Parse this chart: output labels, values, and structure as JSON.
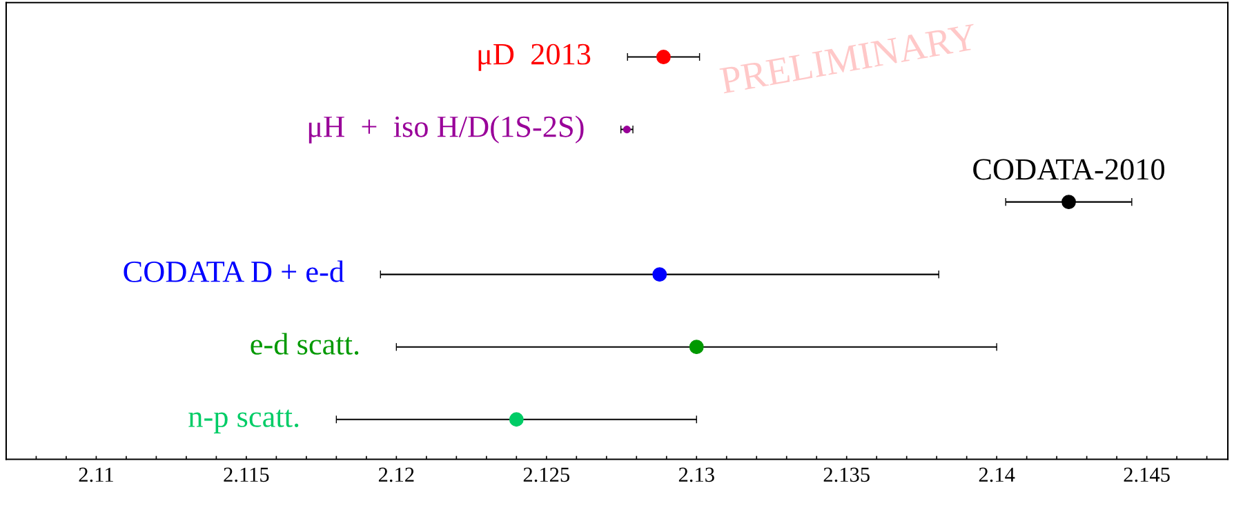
{
  "chart_data": {
    "type": "scatter",
    "orientation": "horizontal",
    "categories": [
      "μD  2013",
      "μH  +  iso H/D(1S-2S)",
      "CODATA-2010",
      "CODATA D + e-d",
      "e-d scatt.",
      "n-p scatt."
    ],
    "values": [
      2.1289,
      2.12768,
      2.1424,
      2.12877,
      2.13,
      2.124
    ],
    "errors": [
      0.0012,
      0.0002,
      0.0021,
      0.0093,
      0.01,
      0.006
    ],
    "sizes": [
      1,
      0.25,
      1,
      1,
      1,
      1
    ],
    "colors": [
      "#ff0000",
      "#990099",
      "#000000",
      "#0000ff",
      "#009900",
      "#00cc66"
    ],
    "marker": "circle",
    "tick_labels": "x",
    "grid": false,
    "xlim": [
      2.107,
      2.1477
    ],
    "xticks": [
      {
        "value": 2.108,
        "label": null
      },
      {
        "value": 2.109,
        "label": null
      },
      2.11,
      {
        "value": 2.111,
        "label": null
      },
      {
        "value": 2.112,
        "label": null
      },
      {
        "value": 2.113,
        "label": null
      },
      {
        "value": 2.114,
        "label": null
      },
      2.115,
      {
        "value": 2.116,
        "label": null
      },
      {
        "value": 2.117,
        "label": null
      },
      {
        "value": 2.118,
        "label": null
      },
      {
        "value": 2.119,
        "label": null
      },
      2.12,
      {
        "value": 2.121,
        "label": null
      },
      {
        "value": 2.122,
        "label": null
      },
      {
        "value": 2.123,
        "label": null
      },
      {
        "value": 2.124,
        "label": null
      },
      2.125,
      {
        "value": 2.126,
        "label": null
      },
      {
        "value": 2.127,
        "label": null
      },
      {
        "value": 2.128,
        "label": null
      },
      {
        "value": 2.129,
        "label": null
      },
      2.13,
      {
        "value": 2.131,
        "label": null
      },
      {
        "value": 2.132,
        "label": null
      },
      {
        "value": 2.133,
        "label": null
      },
      {
        "value": 2.134,
        "label": null
      },
      2.135,
      {
        "value": 2.136,
        "label": null
      },
      {
        "value": 2.137,
        "label": null
      },
      {
        "value": 2.138,
        "label": null
      },
      {
        "value": 2.139,
        "label": null
      },
      2.14,
      {
        "value": 2.141,
        "label": null
      },
      {
        "value": 2.142,
        "label": null
      },
      {
        "value": 2.143,
        "label": null
      },
      {
        "value": 2.144,
        "label": null
      },
      2.145,
      {
        "value": 2.146,
        "label": null
      },
      {
        "value": 2.147,
        "label": null
      }
    ],
    "annotations": [
      "PRELIMINARY"
    ]
  }
}
